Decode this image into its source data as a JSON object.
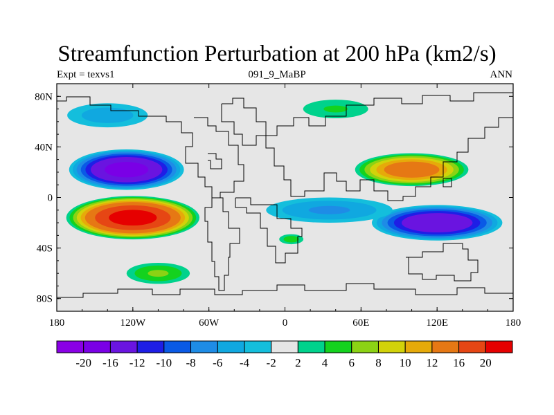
{
  "chart_data": {
    "type": "heatmap",
    "title": "Streamfunction Perturbation at 200 hPa (km2/s)",
    "left_subtitle": "Expt = texvs1",
    "center_subtitle": "091_9_MaBP",
    "right_subtitle": "ANN",
    "xlim": [
      -180,
      180
    ],
    "ylim": [
      -90,
      90
    ],
    "x_ticks": [
      {
        "value": -180,
        "label": "180"
      },
      {
        "value": -120,
        "label": "120W"
      },
      {
        "value": -60,
        "label": "60W"
      },
      {
        "value": 0,
        "label": "0"
      },
      {
        "value": 60,
        "label": "60E"
      },
      {
        "value": 120,
        "label": "120E"
      },
      {
        "value": 180,
        "label": "180"
      }
    ],
    "y_ticks": [
      {
        "value": 80,
        "label": "80N"
      },
      {
        "value": 40,
        "label": "40N"
      },
      {
        "value": 0,
        "label": "0"
      },
      {
        "value": -40,
        "label": "40S"
      },
      {
        "value": -80,
        "label": "80S"
      }
    ],
    "colorbar": {
      "colors": [
        "#8a00e6",
        "#7a00e6",
        "#6a14e0",
        "#1e1ee6",
        "#0a5ae6",
        "#1e8ce6",
        "#10a8e0",
        "#14bedc",
        "#e6e6e6",
        "#00d28c",
        "#14d21e",
        "#8cd214",
        "#d2d20a",
        "#e6aa0a",
        "#e67814",
        "#e64614",
        "#e60000"
      ],
      "labels": [
        "-20",
        "-16",
        "-12",
        "-10",
        "-8",
        "-6",
        "-4",
        "-2",
        "2",
        "4",
        "6",
        "8",
        "10",
        "12",
        "16",
        "20"
      ]
    },
    "features": [
      {
        "name": "north-pacific-low",
        "lon": -125,
        "lat": 22,
        "peak": -17,
        "rx": 48,
        "ry": 17
      },
      {
        "name": "south-pacific-high",
        "lon": -120,
        "lat": -16,
        "peak": 21,
        "rx": 55,
        "ry": 18
      },
      {
        "name": "asian-high",
        "lon": 100,
        "lat": 22,
        "peak": 14,
        "rx": 48,
        "ry": 14
      },
      {
        "name": "indian-ocean-low",
        "lon": 120,
        "lat": -20,
        "peak": -15,
        "rx": 55,
        "ry": 15
      },
      {
        "name": "atlantic-low-band",
        "lon": 35,
        "lat": -10,
        "peak": -6,
        "rx": 60,
        "ry": 12
      },
      {
        "name": "arctic-low",
        "lon": -140,
        "lat": 65,
        "peak": -5,
        "rx": 40,
        "ry": 12
      },
      {
        "name": "north-atlantic-high",
        "lon": 40,
        "lat": 70,
        "peak": 4,
        "rx": 35,
        "ry": 10
      },
      {
        "name": "south-pacific-mid-high",
        "lon": -100,
        "lat": -60,
        "peak": 6,
        "rx": 30,
        "ry": 10
      },
      {
        "name": "south-atlantic-high",
        "lon": 5,
        "lat": -33,
        "peak": 5,
        "rx": 12,
        "ry": 5
      }
    ]
  }
}
